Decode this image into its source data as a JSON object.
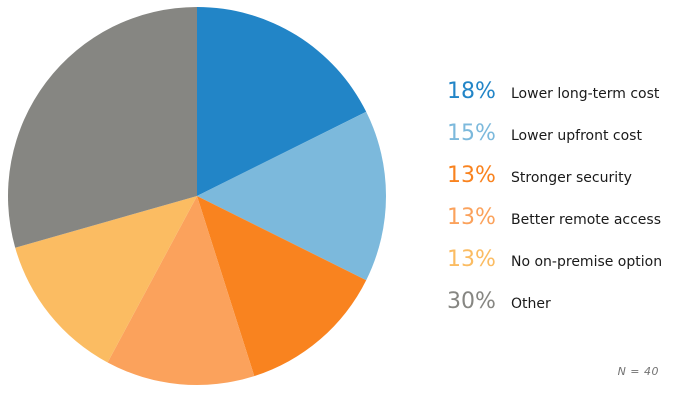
{
  "chart_data": {
    "type": "pie",
    "title": "",
    "direction": "clockwise",
    "start_angle_deg": 0,
    "legend_position": "right",
    "background_color": "#ffffff",
    "label_text_color": "#1a1a1a",
    "footnote": "N = 40",
    "footnote_color": "#727272",
    "slices": [
      {
        "label": "Lower long-term cost",
        "value": 18,
        "percent_label": "18%",
        "color": "#2285c7"
      },
      {
        "label": "Lower upfront cost",
        "value": 15,
        "percent_label": "15%",
        "color": "#7cb9dc"
      },
      {
        "label": "Stronger security",
        "value": 13,
        "percent_label": "13%",
        "color": "#f9831f"
      },
      {
        "label": "Better remote access",
        "value": 13,
        "percent_label": "13%",
        "color": "#fba25c"
      },
      {
        "label": "No on-premise option",
        "value": 13,
        "percent_label": "13%",
        "color": "#fbbc62"
      },
      {
        "label": "Other",
        "value": 30,
        "percent_label": "30%",
        "color": "#868682"
      }
    ]
  }
}
